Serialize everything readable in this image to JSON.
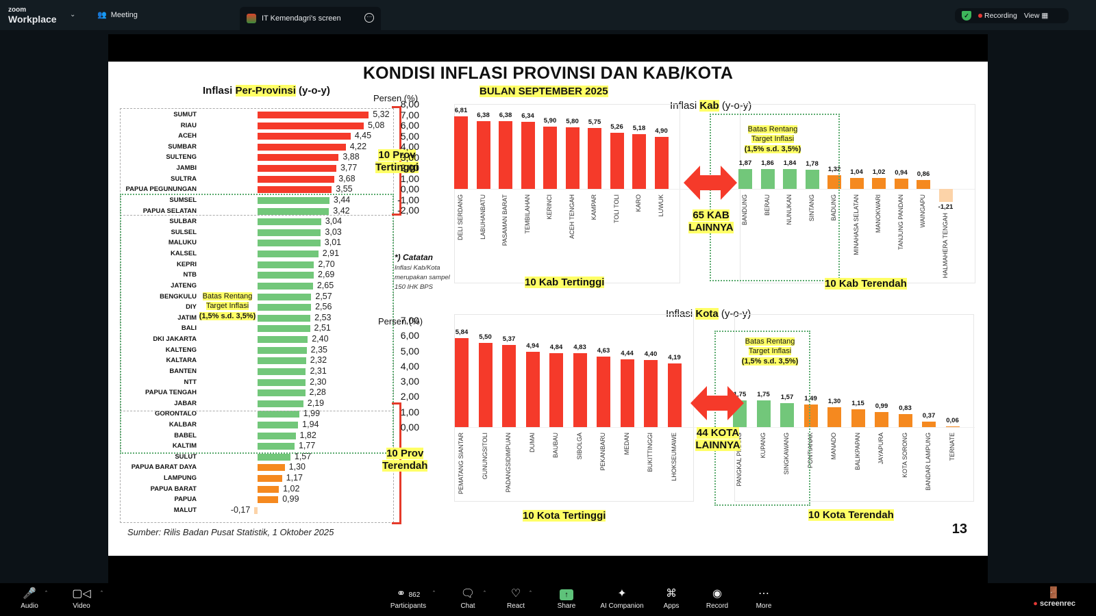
{
  "app": {
    "brand_small": "zoom",
    "brand_big": "Workplace",
    "meeting_label": "Meeting",
    "share_tab_label": "IT Kemendagri's screen",
    "recording_label": "Recording",
    "view_label": "View"
  },
  "toolbar": {
    "audio": "Audio",
    "video": "Video",
    "participants": "Participants",
    "participants_count": "862",
    "chat": "Chat",
    "react": "React",
    "share": "Share",
    "ai_companion": "AI Companion",
    "apps": "Apps",
    "record": "Record",
    "more": "More",
    "screenrec": "screenrec"
  },
  "slide": {
    "title": "KONDISI INFLASI PROVINSI DAN KAB/KOTA",
    "subtitle": "BULAN SEPTEMBER 2025",
    "prov_title_pre": "Inflasi ",
    "prov_title_hl": "Per-Provinsi",
    "prov_title_post": " (y-o-y)",
    "kab_title_pre": "Inflasi ",
    "kab_title_hl": "Kab",
    "kab_title_post": " (y-o-y)",
    "kota_title_pre": "Inflasi ",
    "kota_title_hl": "Kota",
    "kota_title_post": " (y-o-y)",
    "persen_label": "Persen (%)",
    "prov_top_label_1": "10 Prov",
    "prov_top_label_2": "Tertinggi",
    "prov_low_label_1": "10 Prov",
    "prov_low_label_2": "Terendah",
    "batas_1": "Batas Rentang",
    "batas_2": "Target Inflasi",
    "batas_3": "(1,5% s.d. 3,5%)",
    "note_title": "*) Catatan",
    "note_body": "Inflasi Kab/Kota merupakan sampel 150 IHK BPS",
    "kab_others_1": "65 KAB",
    "kab_others_2": "LAINNYA",
    "kota_others_1": "44 KOTA",
    "kota_others_2": "LAINNYA",
    "kab_high_label": "10 Kab Tertinggi",
    "kab_low_label": "10 Kab Terendah",
    "kota_high_label": "10 Kota Tertinggi",
    "kota_low_label": "10 Kota Terendah",
    "source": "Sumber: Rilis Badan Pusat Statistik, 1 Oktober 2025",
    "page_number": "13"
  },
  "colors": {
    "high": "#f53a2a",
    "in_range": "#72c77a",
    "low": "#f5891f",
    "negative": "#fcd3a8",
    "highlight": "#ffff66"
  },
  "chart_data": [
    {
      "type": "bar",
      "orientation": "horizontal",
      "title": "Inflasi Per-Provinsi (y-o-y)",
      "xlabel": "Persen (%)",
      "categories": [
        "SUMUT",
        "RIAU",
        "ACEH",
        "SUMBAR",
        "SULTENG",
        "JAMBI",
        "SULTRA",
        "PAPUA PEGUNUNGAN",
        "SUMSEL",
        "PAPUA SELATAN",
        "SULBAR",
        "SULSEL",
        "MALUKU",
        "KALSEL",
        "KEPRI",
        "NTB",
        "JATENG",
        "BENGKULU",
        "DIY",
        "JATIM",
        "BALI",
        "DKI JAKARTA",
        "KALTENG",
        "KALTARA",
        "BANTEN",
        "NTT",
        "PAPUA TENGAH",
        "JABAR",
        "GORONTALO",
        "KALBAR",
        "BABEL",
        "KALTIM",
        "SULUT",
        "PAPUA BARAT DAYA",
        "LAMPUNG",
        "PAPUA BARAT",
        "PAPUA",
        "MALUT"
      ],
      "values": [
        5.32,
        5.08,
        4.45,
        4.22,
        3.88,
        3.77,
        3.68,
        3.55,
        3.44,
        3.42,
        3.04,
        3.03,
        3.01,
        2.91,
        2.7,
        2.69,
        2.65,
        2.57,
        2.56,
        2.53,
        2.51,
        2.4,
        2.35,
        2.32,
        2.31,
        2.3,
        2.28,
        2.19,
        1.99,
        1.94,
        1.82,
        1.77,
        1.57,
        1.3,
        1.17,
        1.02,
        0.99,
        -0.17
      ],
      "labels": [
        "5,32",
        "5,08",
        "4,45",
        "4,22",
        "3,88",
        "3,77",
        "3,68",
        "3,55",
        "3,44",
        "3,42",
        "3,04",
        "3,03",
        "3,01",
        "2,91",
        "2,70",
        "2,69",
        "2,65",
        "2,57",
        "2,56",
        "2,53",
        "2,51",
        "2,40",
        "2,35",
        "2,32",
        "2,31",
        "2,30",
        "2,28",
        "2,19",
        "1,99",
        "1,94",
        "1,82",
        "1,77",
        "1,57",
        "1,30",
        "1,17",
        "1,02",
        "0,99",
        "-0,17"
      ],
      "annotations": [
        "10 Prov Tertinggi",
        "10 Prov Terendah",
        "Batas Rentang Target Inflasi (1,5% s.d. 3,5%)"
      ]
    },
    {
      "type": "bar",
      "title": "Inflasi Kab (y-o-y)",
      "ylabel": "Persen (%)",
      "yticks": [
        "8,00",
        "7,00",
        "6,00",
        "5,00",
        "4,00",
        "3,00",
        "2,00",
        "1,00",
        "0,00",
        "-1,00",
        "-2,00"
      ],
      "ylim": [
        -2,
        8
      ],
      "series": [
        {
          "name": "10 Kab Tertinggi",
          "categories": [
            "DELI SERDANG",
            "LABUHANBATU",
            "PASAMAN BARAT",
            "TEMBILAHAN",
            "KERINCI",
            "ACEH TENGAH",
            "KAMPAR",
            "TOLI TOLI",
            "KARO",
            "LUWUK"
          ],
          "values": [
            6.81,
            6.38,
            6.38,
            6.34,
            5.9,
            5.8,
            5.75,
            5.26,
            5.18,
            4.9
          ],
          "labels": [
            "6,81",
            "6,38",
            "6,38",
            "6,34",
            "5,90",
            "5,80",
            "5,75",
            "5,26",
            "5,18",
            "4,90"
          ]
        },
        {
          "name": "10 Kab Terendah",
          "categories": [
            "BANDUNG",
            "BERAU",
            "NUNUKAN",
            "SINTANG",
            "BADUNG",
            "MINAHASA SELATAN",
            "MANOKWARI",
            "TANJUNG PANDAN",
            "WAINGAPU",
            "HALMAHERA TENGAH"
          ],
          "values": [
            1.87,
            1.86,
            1.84,
            1.78,
            1.32,
            1.04,
            1.02,
            0.94,
            0.86,
            -1.21
          ],
          "labels": [
            "1,87",
            "1,86",
            "1,84",
            "1,78",
            "1,32",
            "1,04",
            "1,02",
            "0,94",
            "0,86",
            "-1,21"
          ]
        }
      ],
      "annotations": [
        "65 KAB LAINNYA"
      ]
    },
    {
      "type": "bar",
      "title": "Inflasi Kota (y-o-y)",
      "ylabel": "Persen (%)",
      "yticks": [
        "7,00",
        "6,00",
        "5,00",
        "4,00",
        "3,00",
        "2,00",
        "1,00",
        "0,00"
      ],
      "ylim": [
        0,
        7
      ],
      "series": [
        {
          "name": "10 Kota Tertinggi",
          "categories": [
            "PEMATANG SIANTAR",
            "GUNUNGSITOLI",
            "PADANGSIDIMPUAN",
            "DUMAI",
            "BAUBAU",
            "SIBOLGA",
            "PEKANBARU",
            "MEDAN",
            "BUKITTINGGI",
            "LHOKSEUMAWE"
          ],
          "values": [
            5.84,
            5.5,
            5.37,
            4.94,
            4.84,
            4.83,
            4.63,
            4.44,
            4.4,
            4.19
          ],
          "labels": [
            "5,84",
            "5,50",
            "5,37",
            "4,94",
            "4,84",
            "4,83",
            "4,63",
            "4,44",
            "4,40",
            "4,19"
          ]
        },
        {
          "name": "10 Kota Terendah",
          "categories": [
            "PANGKAL PINANG",
            "KUPANG",
            "SINGKAWANG",
            "PONTIANAK",
            "MANADO",
            "BALIKPAPAN",
            "JAYAPURA",
            "KOTA SORONG",
            "BANDAR LAMPUNG",
            "TERNATE"
          ],
          "values": [
            1.75,
            1.75,
            1.57,
            1.49,
            1.3,
            1.15,
            0.99,
            0.83,
            0.37,
            0.06
          ],
          "labels": [
            "1,75",
            "1,75",
            "1,57",
            "1,49",
            "1,30",
            "1,15",
            "0,99",
            "0,83",
            "0,37",
            "0,06"
          ]
        }
      ],
      "annotations": [
        "44 KOTA LAINNYA"
      ]
    }
  ]
}
